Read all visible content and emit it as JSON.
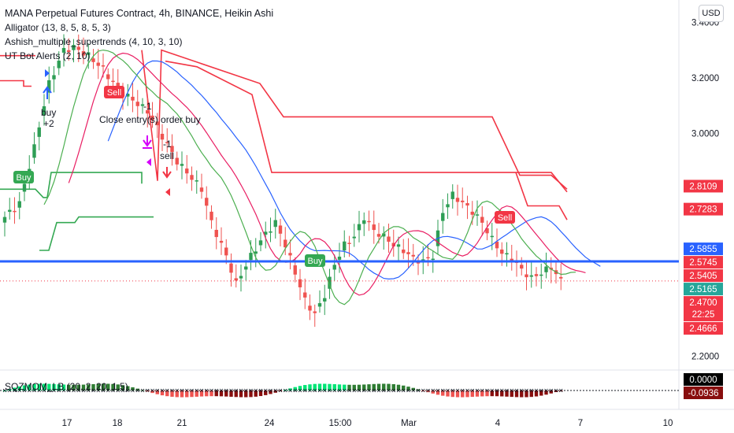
{
  "legend": {
    "title": "MANA Perpetual Futures Contract, 4h, BINANCE, Heikin Ashi",
    "ind1": "Alligator (13, 8, 5, 8, 5, 3)",
    "ind2": "Ashish_multiple_supertrends (4, 10, 3, 10)",
    "ind3": "UT Bot Alerts (2, 10)",
    "osc": "SQZMOM_LB (20, 2, 20, 1.5)"
  },
  "currency": "USD",
  "chart_data": {
    "type": "candlestick",
    "ylim": [
      2.15,
      3.48
    ],
    "y_ticks": [
      "3.4000",
      "3.2000",
      "3.0000",
      "2.2000"
    ],
    "x_ticks": [
      "17",
      "18",
      "21",
      "24",
      "15:00",
      "Mar",
      "4",
      "7",
      "10"
    ],
    "price_line": 2.47,
    "horizontal_line": 2.5405,
    "price_labels": [
      {
        "value": 2.8109,
        "text": "2.8109",
        "bg": "#f23645",
        "fg": "#ffffff"
      },
      {
        "value": 2.7283,
        "text": "2.7283",
        "bg": "#f23645",
        "fg": "#ffffff"
      },
      {
        "value": 2.5855,
        "text": "2.5855",
        "bg": "#2962ff",
        "fg": "#ffffff"
      },
      {
        "value": 2.5745,
        "text": "2.5745",
        "bg": "#f23645",
        "fg": "#ffffff"
      },
      {
        "value": 2.5405,
        "text": "2.5405",
        "bg": "#f23645",
        "fg": "#ffffff"
      },
      {
        "value": 2.5165,
        "text": "2.5165",
        "bg": "#26a69a",
        "fg": "#ffffff"
      },
      {
        "value": 2.47,
        "text": "2.4700",
        "bg": "#f23645",
        "fg": "#ffffff",
        "sub": "22:25"
      },
      {
        "value": 2.4666,
        "text": "2.4666",
        "bg": "#f23645",
        "fg": "#ffffff"
      }
    ],
    "osc_labels": [
      {
        "text": "0.0000",
        "bg": "#000000",
        "fg": "#ffffff"
      },
      {
        "text": "-0.0936",
        "bg": "#880e0e",
        "fg": "#ffffff"
      }
    ],
    "annotations": {
      "buy_box_1": "Buy",
      "buy_box_2": "Buy",
      "sell_box_1": "Sell",
      "sell_box_2": "Sell",
      "buy_text": "buy",
      "plus2": "+2",
      "minus1_a": "-1",
      "minus1_b": "-1",
      "sell_text": "sell",
      "close_text": "Close entry(s) order buy"
    },
    "colors": {
      "up": "#2e9e55",
      "down": "#ef5350",
      "jaw": "#2962ff",
      "teeth": "#e91e63",
      "lips": "#4caf50",
      "supertrend_red": "#f23645",
      "supertrend_green": "#34a853"
    }
  }
}
